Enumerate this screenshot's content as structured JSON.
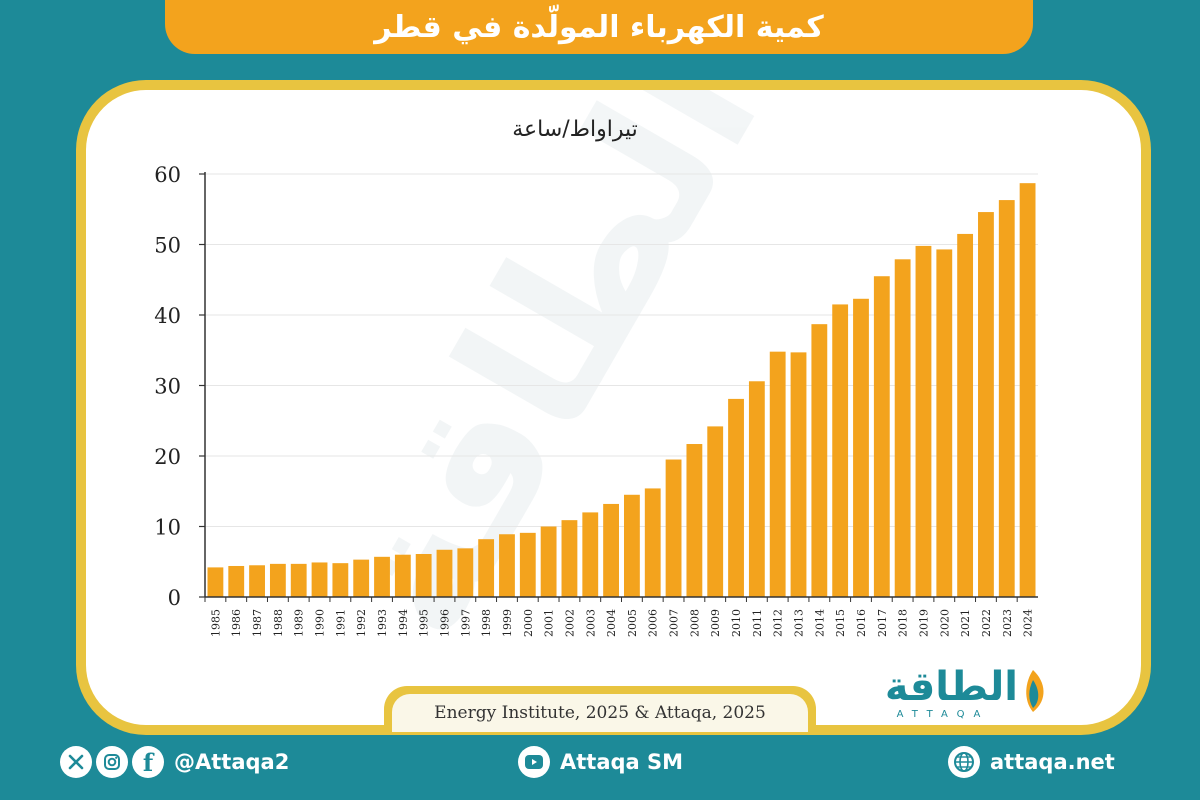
{
  "header": {
    "title": "كمية الكهرباء المولّدة في قطر"
  },
  "source": "Energy Institute, 2025 & Attaqa, 2025",
  "logo": {
    "arabic": "الطاقة",
    "latin": "ATTAQA"
  },
  "footer": {
    "social_handle": "@Attaqa2",
    "youtube_label": "Attaqa SM",
    "website": "attaqa.net"
  },
  "colors": {
    "bar": "#f3a31d",
    "background": "#1d8a98",
    "border": "#e8c440"
  },
  "chart_data": {
    "type": "bar",
    "ylabel": "تيراواط/ساعة",
    "ylim": [
      0,
      60
    ],
    "yticks": [
      0,
      10,
      20,
      30,
      40,
      50,
      60
    ],
    "grid": true,
    "categories": [
      "1985",
      "1986",
      "1987",
      "1988",
      "1989",
      "1990",
      "1991",
      "1992",
      "1993",
      "1994",
      "1995",
      "1996",
      "1997",
      "1998",
      "1999",
      "2000",
      "2001",
      "2002",
      "2003",
      "2004",
      "2005",
      "2006",
      "2007",
      "2008",
      "2009",
      "2010",
      "2011",
      "2012",
      "2013",
      "2014",
      "2015",
      "2016",
      "2017",
      "2018",
      "2019",
      "2020",
      "2021",
      "2022",
      "2023",
      "2024"
    ],
    "values": [
      4.2,
      4.4,
      4.5,
      4.7,
      4.7,
      4.9,
      4.8,
      5.3,
      5.7,
      6.0,
      6.1,
      6.7,
      6.9,
      8.2,
      8.9,
      9.1,
      10.0,
      10.9,
      12.0,
      13.2,
      14.5,
      15.4,
      19.5,
      21.7,
      24.2,
      28.1,
      30.6,
      34.8,
      34.7,
      38.7,
      41.5,
      42.3,
      45.5,
      47.9,
      49.8,
      49.3,
      51.5,
      54.6,
      56.3,
      58.7
    ]
  }
}
